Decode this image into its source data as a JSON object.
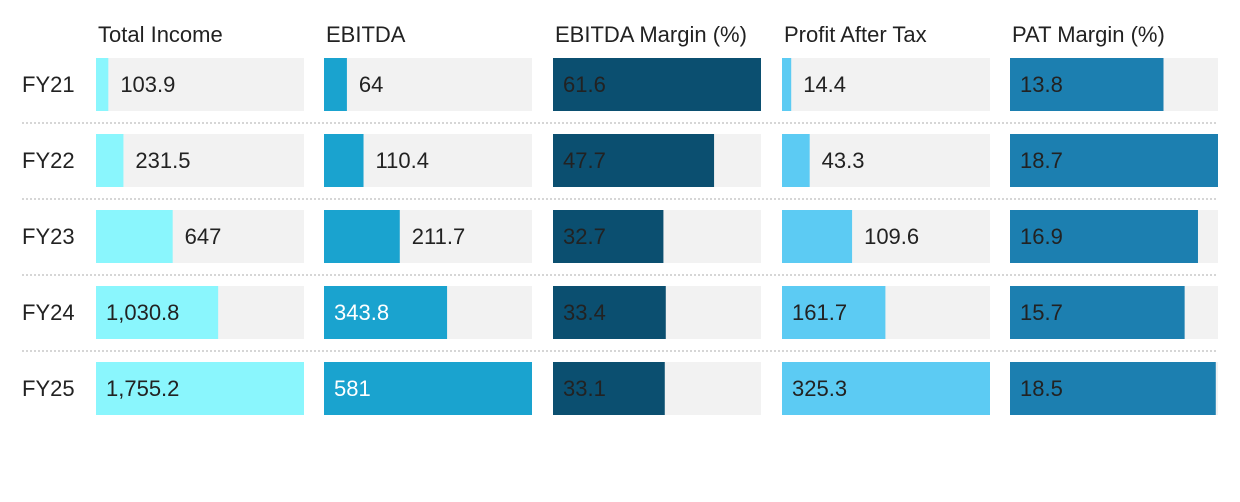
{
  "chart_data": {
    "type": "bar",
    "layout": "small-multiples",
    "categories": [
      "FY21",
      "FY22",
      "FY23",
      "FY24",
      "FY25"
    ],
    "series": [
      {
        "name": "Total Income",
        "values": [
          103.9,
          231.5,
          647,
          1030.8,
          1755.2
        ],
        "labels": [
          "103.9",
          "231.5",
          "647",
          "1,030.8",
          "1,755.2"
        ],
        "max": 1755.2,
        "color": "#8af6fd"
      },
      {
        "name": "EBITDA",
        "values": [
          64,
          110.4,
          211.7,
          343.8,
          581
        ],
        "labels": [
          "64",
          "110.4",
          "211.7",
          "343.8",
          "581"
        ],
        "max": 581,
        "color": "#1aa3cf"
      },
      {
        "name": "EBITDA Margin (%)",
        "values": [
          61.6,
          47.7,
          32.7,
          33.4,
          33.1
        ],
        "labels": [
          "61.6",
          "47.7",
          "32.7",
          "33.4",
          "33.1"
        ],
        "max": 61.6,
        "color": "#0b4f70"
      },
      {
        "name": "Profit After Tax",
        "values": [
          14.4,
          43.3,
          109.6,
          161.7,
          325.3
        ],
        "labels": [
          "14.4",
          "43.3",
          "109.6",
          "161.7",
          "325.3"
        ],
        "max": 325.3,
        "color": "#5ccbf3"
      },
      {
        "name": "PAT Margin (%)",
        "values": [
          13.8,
          18.7,
          16.9,
          15.7,
          18.5
        ],
        "labels": [
          "13.8",
          "18.7",
          "16.9",
          "15.7",
          "18.5"
        ],
        "max": 18.7,
        "color": "#1c7fb0"
      }
    ],
    "colors": {
      "track": "#f2f2f2",
      "text": "#222222",
      "separator": "#c8c8c8"
    }
  }
}
